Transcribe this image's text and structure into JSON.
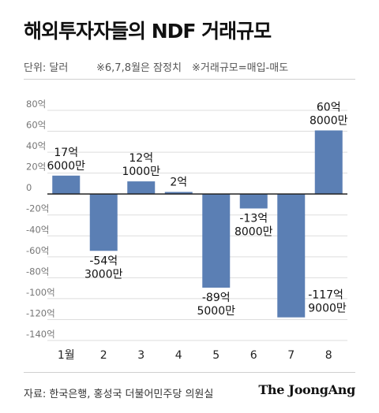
{
  "header": {
    "title": "해외투자자들의 NDF 거래규모",
    "unit_note": "단위: 달러",
    "estimate_note": "※6,7,8월은 잠정치",
    "formula_note": "※거래규모=매입-매도"
  },
  "footer": {
    "source": "자료: 한국은행, 홍성국 더불어민주당 의원실",
    "brand": "The JoongAng"
  },
  "colors": {
    "bar": "#5b7fb4",
    "axis": "#222222",
    "grid": "#dddddd",
    "tick_text": "#777777"
  },
  "chart_data": {
    "type": "bar",
    "title": "해외투자자들의 NDF 거래규모",
    "ylabel": "",
    "xlabel": "",
    "categories": [
      "1월",
      "2",
      "3",
      "4",
      "5",
      "6",
      "7",
      "8"
    ],
    "values": [
      17.6,
      -54.3,
      12.1,
      2,
      -89.5,
      -13.8,
      -117.9,
      60.8
    ],
    "data_labels": [
      [
        "17억",
        "6000만"
      ],
      [
        "-54억",
        "3000만"
      ],
      [
        "12억",
        "1000만"
      ],
      [
        "2억"
      ],
      [
        "-89억",
        "5000만"
      ],
      [
        "-13억",
        "8000만"
      ],
      [
        "-117억",
        "9000만"
      ],
      [
        "60억",
        "8000만"
      ]
    ],
    "ylim": [
      -140,
      80
    ],
    "y_ticks": [
      80,
      60,
      40,
      20,
      0,
      -20,
      -40,
      -60,
      -80,
      -100,
      -120,
      -140
    ],
    "y_tick_labels": [
      "80억",
      "60억",
      "40억",
      "20억",
      "0",
      "-20억",
      "-40억",
      "-60억",
      "-80억",
      "-100억",
      "-120억",
      "-140억"
    ],
    "grid": true,
    "legend": "none"
  }
}
